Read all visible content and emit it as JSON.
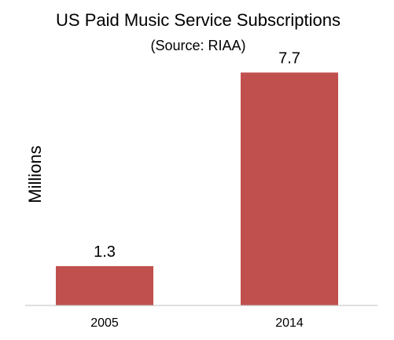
{
  "chart_data": {
    "type": "bar",
    "title": "US Paid Music Service Subscriptions",
    "subtitle": "(Source: RIAA)",
    "xlabel": "",
    "ylabel": "Millions",
    "categories": [
      "2005",
      "2014"
    ],
    "values": [
      1.3,
      7.7
    ],
    "data_labels": [
      "1.3",
      "7.7"
    ],
    "ylim": [
      0,
      8.8
    ],
    "grid": false,
    "legend": "none",
    "bar_color": "#c0504d",
    "axis_color": "#bfbfbf"
  }
}
